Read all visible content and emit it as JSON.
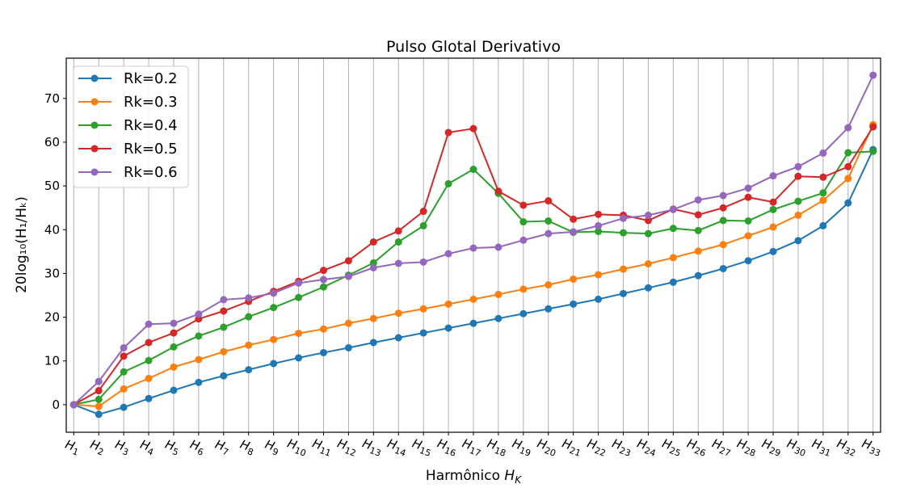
{
  "chart_data": {
    "type": "line",
    "title": "Pulso Glotal Derivativo",
    "xlabel": "Harmônico H_K",
    "xlabel_main": "Harmônico ",
    "xlabel_sym": "H",
    "xlabel_sub": "K",
    "ylabel": "20log₁₀(H₁/Hₖ)",
    "categories": [
      "H1",
      "H2",
      "H3",
      "H4",
      "H5",
      "H6",
      "H7",
      "H8",
      "H9",
      "H10",
      "H11",
      "H12",
      "H13",
      "H14",
      "H15",
      "H16",
      "H17",
      "H18",
      "H19",
      "H20",
      "H21",
      "H22",
      "H23",
      "H24",
      "H25",
      "H26",
      "H27",
      "H28",
      "H29",
      "H30",
      "H31",
      "H32",
      "H33"
    ],
    "x": [
      1,
      2,
      3,
      4,
      5,
      6,
      7,
      8,
      9,
      10,
      11,
      12,
      13,
      14,
      15,
      16,
      17,
      18,
      19,
      20,
      21,
      22,
      23,
      24,
      25,
      26,
      27,
      28,
      29,
      30,
      31,
      32,
      33
    ],
    "xlim": [
      0.7,
      33.3
    ],
    "ylim": [
      -6.3,
      79.2
    ],
    "yticks": [
      0,
      10,
      20,
      30,
      40,
      50,
      60,
      70
    ],
    "grid": "vertical",
    "legend_position": "top-left",
    "series": [
      {
        "name": "Rk=0.2",
        "color": "#1f77b4",
        "values": [
          0,
          -2.2,
          -0.6,
          1.4,
          3.3,
          5.1,
          6.6,
          8.0,
          9.4,
          10.7,
          11.9,
          13.0,
          14.2,
          15.3,
          16.4,
          17.5,
          18.6,
          19.7,
          20.8,
          21.9,
          23.0,
          24.1,
          25.4,
          26.7,
          28.0,
          29.5,
          31.1,
          32.9,
          35.0,
          37.5,
          40.9,
          46.1,
          58.3
        ]
      },
      {
        "name": "Rk=0.3",
        "color": "#ff7f0e",
        "values": [
          0,
          -0.4,
          3.6,
          6.0,
          8.6,
          10.3,
          12.1,
          13.6,
          14.9,
          16.3,
          17.3,
          18.6,
          19.7,
          20.9,
          21.9,
          23.0,
          24.1,
          25.2,
          26.4,
          27.4,
          28.7,
          29.7,
          31.0,
          32.2,
          33.6,
          35.1,
          36.6,
          38.6,
          40.6,
          43.3,
          46.7,
          51.7,
          64.0
        ]
      },
      {
        "name": "Rk=0.4",
        "color": "#2ca02c",
        "values": [
          0,
          1.2,
          7.5,
          10.1,
          13.2,
          15.7,
          17.7,
          20.1,
          22.2,
          24.5,
          26.9,
          29.6,
          32.4,
          37.2,
          40.9,
          50.5,
          53.8,
          48.3,
          41.8,
          42.0,
          39.4,
          39.6,
          39.3,
          39.1,
          40.3,
          39.8,
          42.1,
          42.0,
          44.6,
          46.5,
          48.4,
          57.6,
          57.9
        ]
      },
      {
        "name": "Rk=0.5",
        "color": "#d62728",
        "values": [
          0,
          3.2,
          11.1,
          14.2,
          16.4,
          19.6,
          21.4,
          23.6,
          25.9,
          28.2,
          30.7,
          32.9,
          37.2,
          39.7,
          44.2,
          62.2,
          63.1,
          48.8,
          45.6,
          46.6,
          42.4,
          43.5,
          43.3,
          42.1,
          44.7,
          43.4,
          45.0,
          47.4,
          46.3,
          52.2,
          52.0,
          54.4,
          63.5
        ]
      },
      {
        "name": "Rk=0.6",
        "color": "#9467bd",
        "values": [
          0,
          5.3,
          13.0,
          18.4,
          18.6,
          20.7,
          24.0,
          24.4,
          25.5,
          27.8,
          28.6,
          29.3,
          31.3,
          32.3,
          32.6,
          34.5,
          35.8,
          36.0,
          37.6,
          39.1,
          39.5,
          40.9,
          42.6,
          43.3,
          44.6,
          46.8,
          47.8,
          49.5,
          52.3,
          54.4,
          57.5,
          63.3,
          75.3
        ]
      }
    ]
  }
}
